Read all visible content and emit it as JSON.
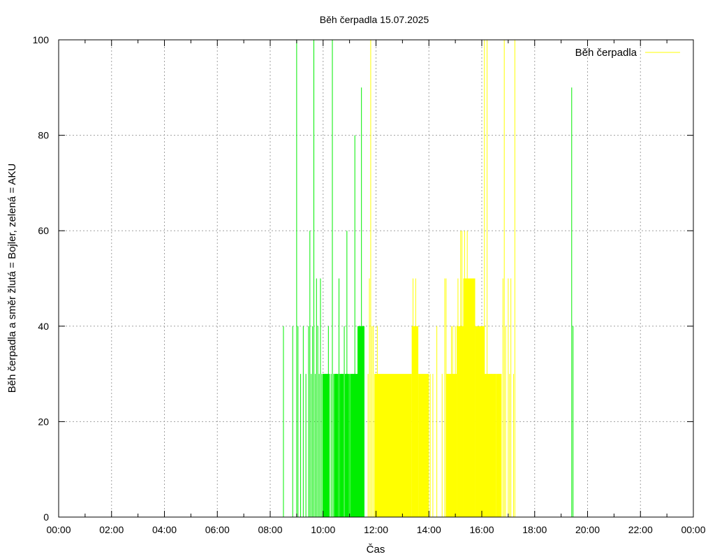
{
  "chart_data": {
    "type": "bar",
    "title": "Běh čerpadla 15.07.2025",
    "xlabel": "Čas",
    "ylabel": "Běh čerpadla a směr žlutá = Bojler, zelená = AKU",
    "x_unit": "hours",
    "xlim": [
      0,
      24
    ],
    "ylim": [
      0,
      100
    ],
    "x_ticks": [
      "00:00",
      "02:00",
      "04:00",
      "06:00",
      "08:00",
      "10:00",
      "12:00",
      "14:00",
      "16:00",
      "18:00",
      "20:00",
      "22:00",
      "00:00"
    ],
    "y_ticks": [
      "0",
      "20",
      "40",
      "60",
      "80",
      "100"
    ],
    "grid": true,
    "legend": {
      "label": "Běh čerpadla",
      "position": "top-right",
      "color": "#ffff00"
    },
    "colors": {
      "aku": "#00ee00",
      "bojler": "#ffff00"
    },
    "series": [
      {
        "direction": "AKU",
        "color": "#00ee00",
        "points": [
          [
            8.5,
            40
          ],
          [
            8.85,
            40
          ],
          [
            9.0,
            100
          ],
          [
            9.05,
            40
          ],
          [
            9.15,
            30
          ],
          [
            9.25,
            40
          ],
          [
            9.35,
            30
          ],
          [
            9.45,
            40
          ],
          [
            9.5,
            60
          ],
          [
            9.55,
            30
          ],
          [
            9.6,
            40
          ],
          [
            9.65,
            100
          ],
          [
            9.7,
            30
          ],
          [
            9.75,
            50
          ],
          [
            9.8,
            40
          ],
          [
            9.85,
            30
          ],
          [
            9.9,
            50
          ],
          [
            9.95,
            30
          ],
          [
            10.0,
            30
          ],
          [
            10.1,
            30
          ],
          [
            10.2,
            40
          ],
          [
            10.3,
            30
          ],
          [
            10.35,
            100
          ],
          [
            10.4,
            30
          ],
          [
            10.5,
            30
          ],
          [
            10.6,
            50
          ],
          [
            10.7,
            30
          ],
          [
            10.8,
            40
          ],
          [
            10.9,
            60
          ],
          [
            11.0,
            30
          ],
          [
            11.1,
            30
          ],
          [
            11.2,
            80
          ],
          [
            11.3,
            30
          ],
          [
            11.35,
            40
          ],
          [
            11.4,
            40
          ],
          [
            11.45,
            90
          ],
          [
            11.5,
            40
          ],
          [
            11.55,
            40
          ],
          [
            19.4,
            90
          ],
          [
            19.45,
            40
          ]
        ],
        "blocks": [
          [
            9.98,
            10.25,
            30
          ],
          [
            10.42,
            10.58,
            30
          ],
          [
            10.62,
            10.78,
            30
          ],
          [
            10.82,
            10.98,
            30
          ],
          [
            11.02,
            11.3,
            30
          ],
          [
            11.3,
            11.55,
            40
          ]
        ]
      },
      {
        "direction": "Bojler",
        "color": "#ffff00",
        "points": [
          [
            11.7,
            30
          ],
          [
            11.75,
            50
          ],
          [
            11.8,
            100
          ],
          [
            11.85,
            40
          ],
          [
            11.9,
            40
          ],
          [
            11.95,
            30
          ],
          [
            12.05,
            40
          ],
          [
            12.1,
            30
          ],
          [
            13.4,
            50
          ],
          [
            13.5,
            50
          ],
          [
            14.05,
            30
          ],
          [
            14.15,
            30
          ],
          [
            14.3,
            40
          ],
          [
            14.5,
            30
          ],
          [
            14.6,
            50
          ],
          [
            14.65,
            50
          ],
          [
            14.7,
            30
          ],
          [
            14.85,
            40
          ],
          [
            14.9,
            40
          ],
          [
            15.0,
            40
          ],
          [
            15.1,
            50
          ],
          [
            15.2,
            60
          ],
          [
            15.25,
            60
          ],
          [
            15.35,
            60
          ],
          [
            15.45,
            60
          ],
          [
            15.55,
            50
          ],
          [
            15.7,
            40
          ],
          [
            16.1,
            100
          ],
          [
            16.2,
            100
          ],
          [
            16.35,
            30
          ],
          [
            16.5,
            30
          ],
          [
            16.65,
            30
          ],
          [
            16.8,
            50
          ],
          [
            16.85,
            100
          ],
          [
            16.9,
            40
          ],
          [
            17.0,
            50
          ],
          [
            17.05,
            30
          ],
          [
            17.1,
            50
          ],
          [
            17.2,
            30
          ],
          [
            17.25,
            100
          ]
        ],
        "blocks": [
          [
            11.95,
            13.35,
            30
          ],
          [
            13.35,
            13.6,
            40
          ],
          [
            13.6,
            14.0,
            30
          ],
          [
            14.65,
            15.05,
            30
          ],
          [
            15.05,
            15.3,
            40
          ],
          [
            15.3,
            15.75,
            50
          ],
          [
            15.75,
            16.1,
            40
          ],
          [
            16.1,
            16.55,
            30
          ],
          [
            16.55,
            16.75,
            30
          ]
        ]
      }
    ]
  }
}
